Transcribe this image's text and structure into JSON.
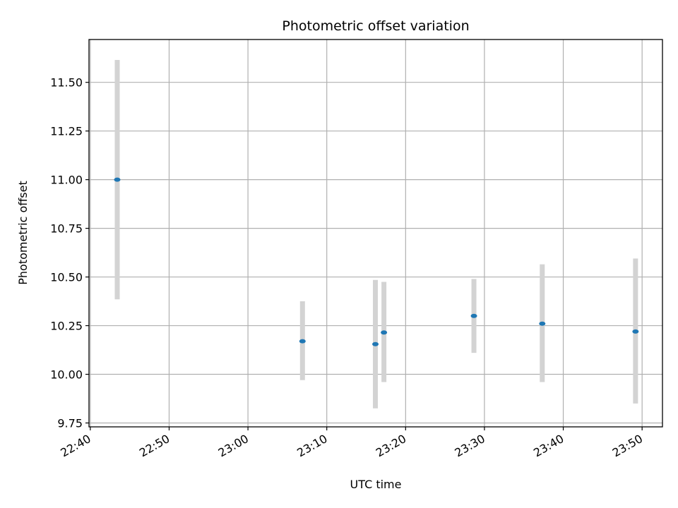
{
  "chart_data": {
    "type": "scatter",
    "title": "Photometric offset variation",
    "xlabel": "UTC time",
    "ylabel": "Photometric offset",
    "xlim": [
      "22:39:50",
      "23:52:35"
    ],
    "ylim": [
      9.73,
      11.72
    ],
    "grid": true,
    "x_ticks": [
      "22:40",
      "22:50",
      "23:00",
      "23:10",
      "23:20",
      "23:30",
      "23:40",
      "23:50"
    ],
    "y_ticks": [
      "9.75",
      "10.00",
      "10.25",
      "10.50",
      "10.75",
      "11.00",
      "11.25",
      "11.50"
    ],
    "colors": {
      "marker": "#1f77b4",
      "errorbar": "#d3d3d3",
      "grid": "#b0b0b0"
    },
    "points": [
      {
        "time": "22:43:25",
        "value": 11.0,
        "err_low": 10.385,
        "err_high": 11.615
      },
      {
        "time": "23:06:55",
        "value": 10.17,
        "err_low": 9.97,
        "err_high": 10.375
      },
      {
        "time": "23:16:10",
        "value": 10.155,
        "err_low": 9.825,
        "err_high": 10.485
      },
      {
        "time": "23:17:15",
        "value": 10.215,
        "err_low": 9.96,
        "err_high": 10.475
      },
      {
        "time": "23:28:40",
        "value": 10.3,
        "err_low": 10.11,
        "err_high": 10.49
      },
      {
        "time": "23:37:20",
        "value": 10.26,
        "err_low": 9.96,
        "err_high": 10.565
      },
      {
        "time": "23:49:10",
        "value": 10.22,
        "err_low": 9.85,
        "err_high": 10.595
      }
    ]
  }
}
